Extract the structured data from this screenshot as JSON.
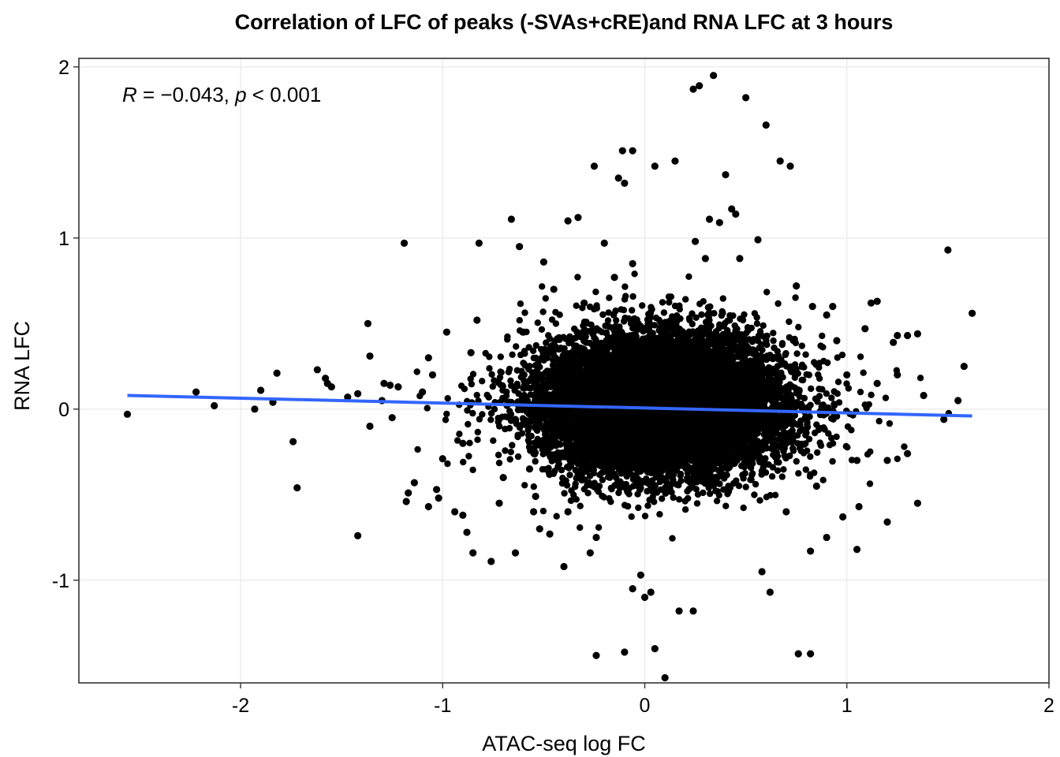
{
  "chart_data": {
    "type": "scatter",
    "title": "Correlation of LFC of peaks (-SVAs+cRE)and RNA LFC at 3 hours",
    "xlabel": "ATAC-seq log FC",
    "ylabel": "RNA LFC",
    "xlim": [
      -2.8,
      2.0
    ],
    "ylim": [
      -1.6,
      2.05
    ],
    "x_ticks": [
      -2,
      -1,
      0,
      1,
      2
    ],
    "x_tick_labels": [
      "-2",
      "-1",
      "0",
      "1",
      "2"
    ],
    "y_ticks": [
      -1,
      0,
      1,
      2
    ],
    "y_tick_labels": [
      "-1",
      "0",
      "1",
      "2"
    ],
    "grid": true,
    "legend": "none",
    "annotation": {
      "r_symbol": "R",
      "r_value": " = −0.043, ",
      "p_symbol": "p",
      "p_value": " < 0.001"
    },
    "regression_line": {
      "color": "#3366ff",
      "x": [
        -2.56,
        1.62
      ],
      "y": [
        0.08,
        -0.04
      ]
    },
    "point_color": "#000000",
    "points_outlying": [
      [
        -2.56,
        -0.03
      ],
      [
        -2.22,
        0.1
      ],
      [
        -2.13,
        0.02
      ],
      [
        -1.93,
        0.0
      ],
      [
        -1.9,
        0.11
      ],
      [
        -1.84,
        0.04
      ],
      [
        -1.82,
        0.21
      ],
      [
        -1.74,
        -0.19
      ],
      [
        -1.72,
        -0.46
      ],
      [
        -1.62,
        0.23
      ],
      [
        -1.58,
        0.18
      ],
      [
        -1.57,
        0.15
      ],
      [
        -1.55,
        0.13
      ],
      [
        -1.47,
        0.07
      ],
      [
        -1.42,
        -0.74
      ],
      [
        -1.42,
        0.09
      ],
      [
        -1.37,
        0.5
      ],
      [
        -1.36,
        0.31
      ],
      [
        -1.36,
        -0.1
      ],
      [
        -1.29,
        0.15
      ],
      [
        -1.26,
        0.14
      ],
      [
        -1.22,
        0.13
      ],
      [
        -1.19,
        0.97
      ],
      [
        -1.17,
        -0.49
      ],
      [
        -1.18,
        -0.54
      ],
      [
        -1.14,
        -0.43
      ],
      [
        -1.07,
        -0.57
      ],
      [
        -1.03,
        -0.47
      ],
      [
        -1.02,
        -0.52
      ],
      [
        -1.1,
        0.1
      ],
      [
        -1.05,
        0.2
      ],
      [
        -1.0,
        -0.29
      ],
      [
        -0.94,
        -0.6
      ],
      [
        -0.9,
        -0.62
      ],
      [
        -0.88,
        -0.72
      ],
      [
        -0.85,
        -0.84
      ],
      [
        -0.83,
        0.52
      ],
      [
        -0.82,
        0.97
      ],
      [
        -0.76,
        -0.89
      ],
      [
        -0.72,
        -0.55
      ],
      [
        -0.66,
        1.11
      ],
      [
        -0.64,
        -0.84
      ],
      [
        -0.62,
        0.95
      ],
      [
        -0.57,
        -0.35
      ],
      [
        -0.54,
        -0.51
      ],
      [
        -0.52,
        -0.7
      ],
      [
        -0.5,
        0.86
      ],
      [
        -0.47,
        -0.73
      ],
      [
        -0.4,
        -0.92
      ],
      [
        -0.38,
        1.1
      ],
      [
        -0.38,
        -0.6
      ],
      [
        -0.33,
        1.12
      ],
      [
        -0.27,
        -0.84
      ],
      [
        -0.25,
        1.42
      ],
      [
        -0.24,
        -0.75
      ],
      [
        -0.24,
        -1.44
      ],
      [
        -0.2,
        0.97
      ],
      [
        -0.15,
        0.77
      ],
      [
        -0.13,
        1.35
      ],
      [
        -0.11,
        1.51
      ],
      [
        -0.1,
        1.32
      ],
      [
        -0.1,
        -1.42
      ],
      [
        -0.06,
        1.51
      ],
      [
        -0.06,
        0.85
      ],
      [
        -0.06,
        -1.05
      ],
      [
        -0.02,
        -0.97
      ],
      [
        0.0,
        -1.1
      ],
      [
        0.03,
        -1.07
      ],
      [
        0.05,
        1.42
      ],
      [
        0.05,
        -1.4
      ],
      [
        0.1,
        -1.57
      ],
      [
        0.15,
        1.45
      ],
      [
        0.17,
        -1.18
      ],
      [
        0.24,
        -1.18
      ],
      [
        0.24,
        1.87
      ],
      [
        0.27,
        1.89
      ],
      [
        0.25,
        0.98
      ],
      [
        0.3,
        0.88
      ],
      [
        0.32,
        1.11
      ],
      [
        0.34,
        1.95
      ],
      [
        0.37,
        1.09
      ],
      [
        0.4,
        1.37
      ],
      [
        0.43,
        1.17
      ],
      [
        0.45,
        1.14
      ],
      [
        0.47,
        0.88
      ],
      [
        0.5,
        1.82
      ],
      [
        0.56,
        0.99
      ],
      [
        0.6,
        1.66
      ],
      [
        0.62,
        -1.07
      ],
      [
        0.67,
        1.45
      ],
      [
        0.72,
        1.42
      ],
      [
        0.76,
        -1.43
      ],
      [
        0.82,
        -1.43
      ],
      [
        0.82,
        -0.83
      ],
      [
        0.83,
        0.6
      ],
      [
        0.9,
        0.55
      ],
      [
        0.9,
        -0.75
      ],
      [
        0.93,
        0.6
      ],
      [
        0.98,
        -0.63
      ],
      [
        1.06,
        -0.57
      ],
      [
        1.05,
        -0.82
      ],
      [
        1.09,
        0.47
      ],
      [
        1.12,
        0.62
      ],
      [
        1.15,
        0.63
      ],
      [
        1.2,
        -0.66
      ],
      [
        1.23,
        0.39
      ],
      [
        1.25,
        0.43
      ],
      [
        1.3,
        0.43
      ],
      [
        1.35,
        0.44
      ],
      [
        1.3,
        -0.26
      ],
      [
        1.48,
        -0.06
      ],
      [
        1.5,
        0.93
      ],
      [
        1.55,
        0.05
      ],
      [
        1.58,
        0.25
      ],
      [
        1.62,
        0.56
      ],
      [
        1.35,
        -0.55
      ],
      [
        1.25,
        0.2
      ],
      [
        1.15,
        0.15
      ],
      [
        1.2,
        -0.3
      ],
      [
        1.38,
        0.08
      ],
      [
        -1.07,
        0.3
      ],
      [
        -0.98,
        0.45
      ],
      [
        -0.86,
        0.33
      ],
      [
        -0.9,
        -0.2
      ],
      [
        -1.25,
        -0.05
      ],
      [
        -1.3,
        0.05
      ],
      [
        -0.7,
        -0.4
      ],
      [
        -0.6,
        0.45
      ],
      [
        -0.45,
        0.7
      ],
      [
        -0.3,
        0.62
      ],
      [
        -0.55,
        -0.6
      ],
      [
        0.7,
        -0.6
      ],
      [
        0.85,
        -0.45
      ],
      [
        0.75,
        0.72
      ],
      [
        0.95,
        0.4
      ],
      [
        1.0,
        0.2
      ],
      [
        1.05,
        -0.3
      ],
      [
        0.58,
        -0.95
      ]
    ],
    "dense_cloud": {
      "description_free": true,
      "center_x": 0.07,
      "center_y": 0.02,
      "sd_x": 0.28,
      "sd_y": 0.2,
      "n": 11000
    }
  }
}
